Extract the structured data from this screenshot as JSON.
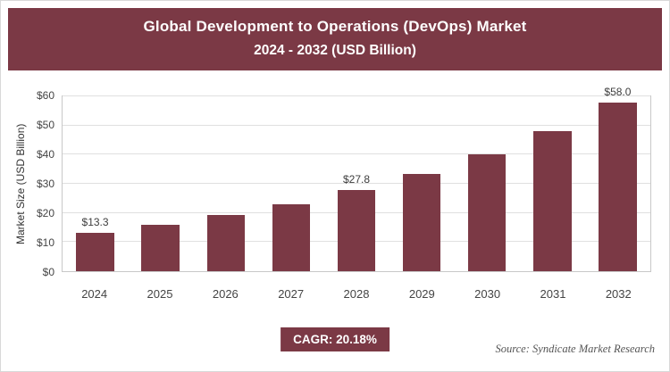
{
  "header": {
    "title_line1": "Global Development to Operations (DevOps) Market",
    "title_line2": "2024 - 2032 (USD Billion)"
  },
  "chart_data": {
    "type": "bar",
    "title": "Global Development to Operations (DevOps) Market 2024 - 2032 (USD Billion)",
    "categories": [
      "2024",
      "2025",
      "2026",
      "2027",
      "2028",
      "2029",
      "2030",
      "2031",
      "2032"
    ],
    "values": [
      13.3,
      16.0,
      19.2,
      23.1,
      27.8,
      33.3,
      40.1,
      48.2,
      58.0
    ],
    "value_labels": {
      "2024": "$13.3",
      "2028": "$27.8",
      "2032": "$58.0"
    },
    "xlabel": "",
    "ylabel": "Market Size (USD Billion)",
    "ylim": [
      0,
      60
    ],
    "ytick_step": 10,
    "ytick_labels": [
      "$0",
      "$10",
      "$20",
      "$30",
      "$40",
      "$50",
      "$60"
    ],
    "grid": true,
    "legend": "none",
    "bar_color": "#7B3945"
  },
  "footer": {
    "cagr_label": "CAGR: 20.18%",
    "source": "Source: Syndicate Market Research"
  },
  "colors": {
    "accent": "#7B3945",
    "grid": "#e0e0e0",
    "axis_border": "#c8c8c8"
  }
}
